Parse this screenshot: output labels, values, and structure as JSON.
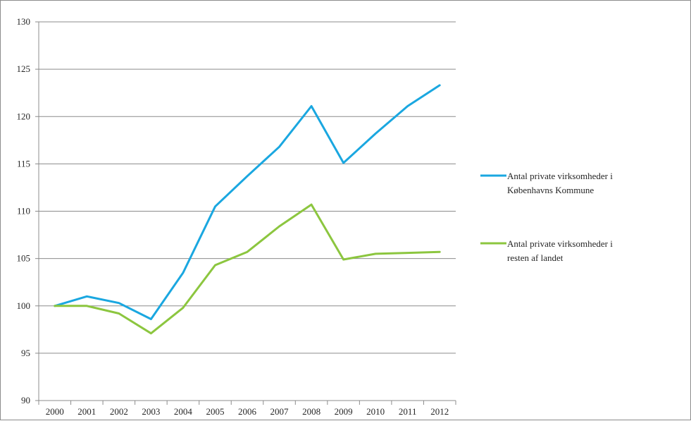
{
  "chart_data": {
    "type": "line",
    "categories": [
      "2000",
      "2001",
      "2002",
      "2003",
      "2004",
      "2005",
      "2006",
      "2007",
      "2008",
      "2009",
      "2010",
      "2011",
      "2012"
    ],
    "ylim": [
      90,
      130
    ],
    "yticks": [
      90,
      95,
      100,
      105,
      110,
      115,
      120,
      125,
      130
    ],
    "grid": true,
    "legend_position": "right",
    "series": [
      {
        "name_lines": [
          "Antal private virksomheder i",
          "Københavns Kommune"
        ],
        "color": "#1aa7e0",
        "values": [
          100,
          101.0,
          100.3,
          98.6,
          103.5,
          110.5,
          113.7,
          116.8,
          121.1,
          115.1,
          118.2,
          121.1,
          123.3
        ]
      },
      {
        "name_lines": [
          "Antal private virksomheder i",
          "resten af landet"
        ],
        "color": "#8cc63f",
        "values": [
          100,
          100.0,
          99.2,
          97.1,
          99.8,
          104.3,
          105.7,
          108.4,
          110.7,
          104.9,
          105.5,
          105.6,
          105.7
        ]
      }
    ]
  }
}
